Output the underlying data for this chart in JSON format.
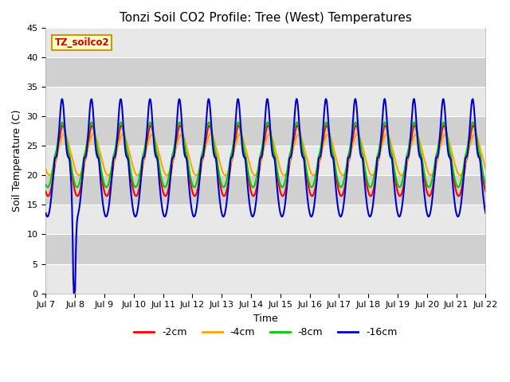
{
  "title": "Tonzi Soil CO2 Profile: Tree (West) Temperatures",
  "xlabel": "Time",
  "ylabel": "Soil Temperature (C)",
  "ylim": [
    0,
    45
  ],
  "yticks": [
    0,
    5,
    10,
    15,
    20,
    25,
    30,
    35,
    40,
    45
  ],
  "total_days": 15,
  "xtick_labels": [
    "Jul 7",
    "Jul 8",
    "Jul 9",
    "Jul 10",
    "Jul 11",
    "Jul 12",
    "Jul 13",
    "Jul 14",
    "Jul 15",
    "Jul 16",
    "Jul 17",
    "Jul 18",
    "Jul 19",
    "Jul 20",
    "Jul 21",
    "Jul 22"
  ],
  "colors": {
    "-2cm": "#ff0000",
    "-4cm": "#ffa500",
    "-8cm": "#00cc00",
    "-16cm": "#0000cc"
  },
  "inset_label": "TZ_soilco2",
  "inset_bg": "#ffffcc",
  "inset_border": "#cc9900",
  "inset_text_color": "#cc0000",
  "band_colors": [
    "#e8e8e8",
    "#d0d0d0"
  ],
  "grid_color": "#ffffff",
  "line_width": 1.5,
  "title_fontsize": 11,
  "axis_fontsize": 9,
  "tick_fontsize": 8,
  "legend_fontsize": 9
}
